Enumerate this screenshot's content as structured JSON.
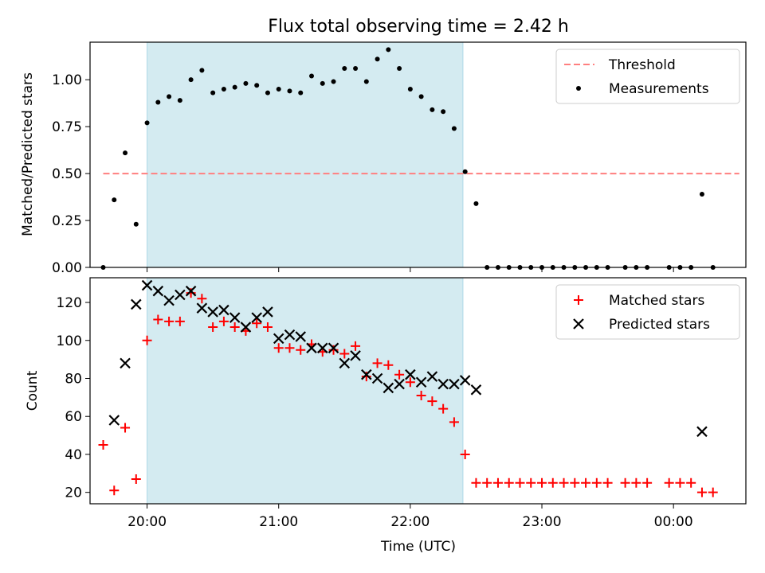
{
  "chart_data": [
    {
      "type": "scatter",
      "title": "Flux total observing time = 2.42 h",
      "ylabel": "Matched/Predicted stars",
      "xlabel": "",
      "xlim": [
        "19:34",
        "24:33"
      ],
      "ylim": [
        0,
        1.2
      ],
      "y_ticks": [
        0.0,
        0.25,
        0.5,
        0.75,
        1.0
      ],
      "y_tick_labels": [
        "0.00",
        "0.25",
        "0.50",
        "0.75",
        "1.00"
      ],
      "shaded_interval": [
        "20:00",
        "22:24"
      ],
      "shade_color": "#d4ebf1",
      "legend_position": "top-right",
      "series": [
        {
          "name": "Threshold",
          "style": "dashed-line",
          "color": "#ff7f7f",
          "x": [
            "19:40",
            "24:30"
          ],
          "y": [
            0.5,
            0.5
          ]
        },
        {
          "name": "Measurements",
          "style": "dot",
          "color": "#000000",
          "x": [
            "19:40",
            "19:45",
            "19:50",
            "19:55",
            "20:00",
            "20:05",
            "20:10",
            "20:15",
            "20:20",
            "20:25",
            "20:30",
            "20:35",
            "20:40",
            "20:45",
            "20:50",
            "20:55",
            "21:00",
            "21:05",
            "21:10",
            "21:15",
            "21:20",
            "21:25",
            "21:30",
            "21:35",
            "21:40",
            "21:45",
            "21:50",
            "21:55",
            "22:00",
            "22:05",
            "22:10",
            "22:15",
            "22:20",
            "22:25",
            "22:30",
            "22:35",
            "22:40",
            "22:45",
            "22:50",
            "22:55",
            "23:00",
            "23:05",
            "23:10",
            "23:15",
            "23:20",
            "23:25",
            "23:30",
            "23:38",
            "23:43",
            "23:48",
            "23:58",
            "24:03",
            "24:08",
            "24:13",
            "24:18"
          ],
          "y": [
            0.0,
            0.36,
            0.61,
            0.23,
            0.77,
            0.88,
            0.91,
            0.89,
            1.0,
            1.05,
            0.93,
            0.95,
            0.96,
            0.98,
            0.97,
            0.93,
            0.95,
            0.94,
            0.93,
            1.02,
            0.98,
            0.99,
            1.06,
            1.06,
            0.99,
            1.11,
            1.16,
            1.06,
            0.95,
            0.91,
            0.84,
            0.83,
            0.74,
            0.51,
            0.34,
            0.0,
            0.0,
            0.0,
            0.0,
            0.0,
            0.0,
            0.0,
            0.0,
            0.0,
            0.0,
            0.0,
            0.0,
            0.0,
            0.0,
            0.0,
            0.0,
            0.0,
            0.0,
            0.39,
            0.0
          ]
        }
      ]
    },
    {
      "type": "scatter",
      "title": "",
      "ylabel": "Count",
      "xlabel": "Time (UTC)",
      "xlim": [
        "19:34",
        "24:33"
      ],
      "ylim": [
        14,
        133
      ],
      "y_ticks": [
        20,
        40,
        60,
        80,
        100,
        120
      ],
      "y_tick_labels": [
        "20",
        "40",
        "60",
        "80",
        "100",
        "120"
      ],
      "x_ticks": [
        "20:00",
        "21:00",
        "22:00",
        "23:00",
        "24:00"
      ],
      "x_tick_labels": [
        "20:00",
        "21:00",
        "22:00",
        "23:00",
        "00:00"
      ],
      "shaded_interval": [
        "20:00",
        "22:24"
      ],
      "shade_color": "#d4ebf1",
      "legend_position": "top-right",
      "series": [
        {
          "name": "Matched stars",
          "style": "plus",
          "color": "#ff0000",
          "x": [
            "19:40",
            "19:45",
            "19:50",
            "19:55",
            "20:00",
            "20:05",
            "20:10",
            "20:15",
            "20:20",
            "20:25",
            "20:30",
            "20:35",
            "20:40",
            "20:45",
            "20:50",
            "20:55",
            "21:00",
            "21:05",
            "21:10",
            "21:15",
            "21:20",
            "21:25",
            "21:30",
            "21:35",
            "21:40",
            "21:45",
            "21:50",
            "21:55",
            "22:00",
            "22:05",
            "22:10",
            "22:15",
            "22:20",
            "22:25",
            "22:30",
            "22:35",
            "22:40",
            "22:45",
            "22:50",
            "22:55",
            "23:00",
            "23:05",
            "23:10",
            "23:15",
            "23:20",
            "23:25",
            "23:30",
            "23:38",
            "23:43",
            "23:48",
            "23:58",
            "24:03",
            "24:08",
            "24:13",
            "24:18"
          ],
          "y": [
            45,
            21,
            54,
            27,
            100,
            111,
            110,
            110,
            125,
            122,
            107,
            110,
            107,
            105,
            109,
            107,
            96,
            96,
            95,
            98,
            94,
            95,
            93,
            97,
            81,
            88,
            87,
            82,
            78,
            71,
            68,
            64,
            57,
            40,
            25,
            25,
            25,
            25,
            25,
            25,
            25,
            25,
            25,
            25,
            25,
            25,
            25,
            25,
            25,
            25,
            25,
            25,
            25,
            20,
            20
          ]
        },
        {
          "name": "Predicted stars",
          "style": "x",
          "color": "#000000",
          "x": [
            "19:45",
            "19:50",
            "19:55",
            "20:00",
            "20:05",
            "20:10",
            "20:15",
            "20:20",
            "20:25",
            "20:30",
            "20:35",
            "20:40",
            "20:45",
            "20:50",
            "20:55",
            "21:00",
            "21:05",
            "21:10",
            "21:15",
            "21:20",
            "21:25",
            "21:30",
            "21:35",
            "21:40",
            "21:45",
            "21:50",
            "21:55",
            "22:00",
            "22:05",
            "22:10",
            "22:15",
            "22:20",
            "22:25",
            "22:30",
            "24:13"
          ],
          "y": [
            58,
            88,
            119,
            129,
            126,
            121,
            124,
            126,
            117,
            115,
            116,
            112,
            107,
            112,
            115,
            101,
            103,
            102,
            96,
            96,
            96,
            88,
            92,
            82,
            80,
            75,
            77,
            82,
            78,
            81,
            77,
            77,
            79,
            74,
            52
          ]
        }
      ]
    }
  ]
}
